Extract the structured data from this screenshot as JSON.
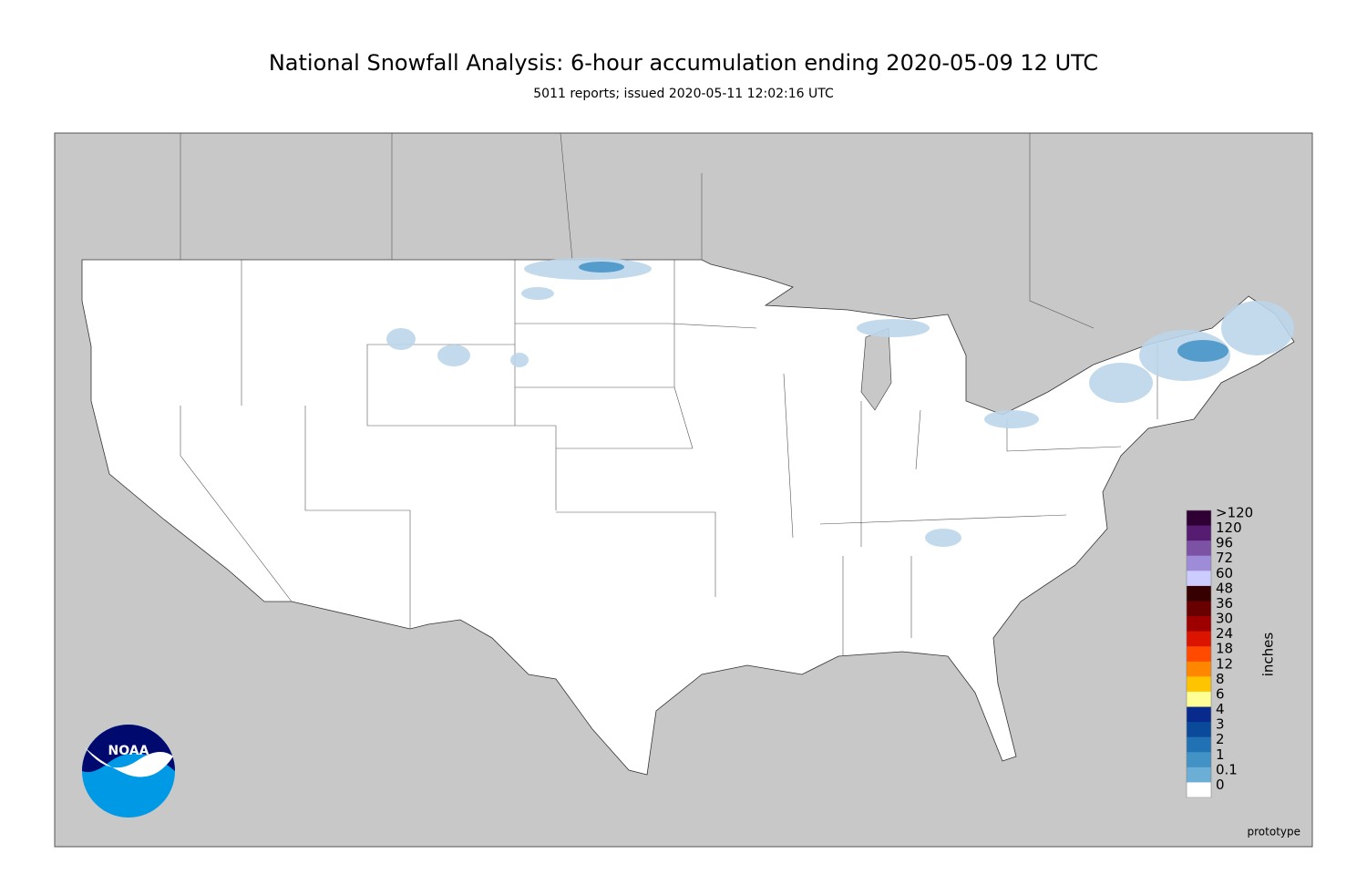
{
  "header": {
    "title": "National Snowfall Analysis: 6-hour accumulation ending 2020-05-09 12 UTC",
    "subtitle": "5011 reports; issued 2020-05-11 12:02:16 UTC"
  },
  "legend": {
    "unit": "inches",
    "levels": [
      {
        "label": ">120",
        "color": "#2e0033"
      },
      {
        "label": "120",
        "color": "#561c72"
      },
      {
        "label": "96",
        "color": "#7c52a5"
      },
      {
        "label": "72",
        "color": "#9f8cd8"
      },
      {
        "label": "60",
        "color": "#ccccff"
      },
      {
        "label": "48",
        "color": "#360000"
      },
      {
        "label": "36",
        "color": "#690000"
      },
      {
        "label": "30",
        "color": "#9e0000"
      },
      {
        "label": "24",
        "color": "#db1400"
      },
      {
        "label": "18",
        "color": "#ff4a00"
      },
      {
        "label": "12",
        "color": "#ff8700"
      },
      {
        "label": "8",
        "color": "#ffc400"
      },
      {
        "label": "6",
        "color": "#ffff96"
      },
      {
        "label": "4",
        "color": "#082a8c"
      },
      {
        "label": "3",
        "color": "#0b4a9a"
      },
      {
        "label": "2",
        "color": "#2171b5"
      },
      {
        "label": "1",
        "color": "#4292c6"
      },
      {
        "label": "0.1",
        "color": "#6baed6"
      },
      {
        "label": "0",
        "color": "#bcd6ea"
      }
    ],
    "base_color": "#e4eef9"
  },
  "logo": "NOAA",
  "footnote": "prototype"
}
